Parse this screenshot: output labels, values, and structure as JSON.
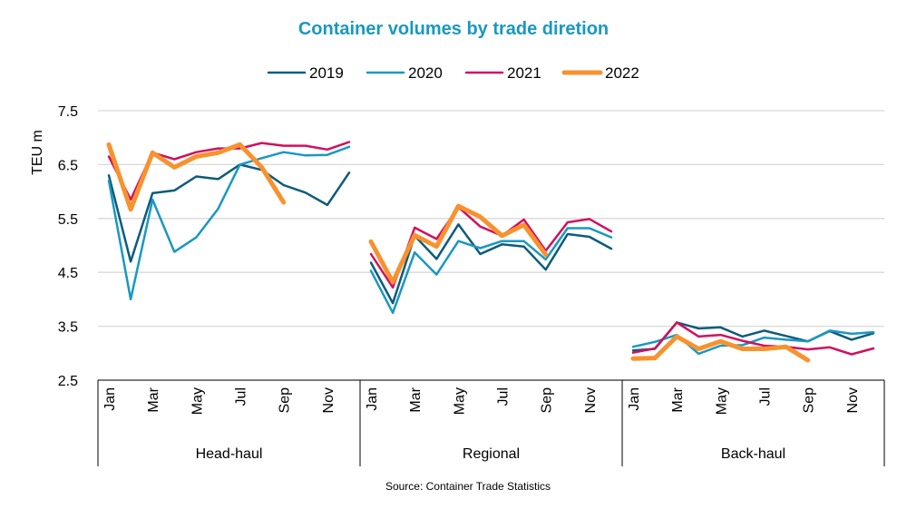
{
  "chart_data": {
    "type": "line",
    "title": "Container volumes by trade diretion",
    "ylabel": "TEU m",
    "xlabel": "",
    "ylim": [
      2.5,
      7.5
    ],
    "yticks": [
      "2.5",
      "3.5",
      "4.5",
      "5.5",
      "6.5",
      "7.5"
    ],
    "grid": true,
    "legend_position": "top-center",
    "source": "Source: Container Trade Statistics",
    "groups": [
      "Head-haul",
      "Regional",
      "Back-haul"
    ],
    "month_labels": [
      "Jan",
      "",
      "Mar",
      "",
      "May",
      "",
      "Jul",
      "",
      "Sep",
      "",
      "Nov",
      ""
    ],
    "series": [
      {
        "name": "2019",
        "color": "#0d5b7c",
        "width": 2.5,
        "values": {
          "Head-haul": [
            6.3,
            4.7,
            5.97,
            6.02,
            6.28,
            6.23,
            6.5,
            6.4,
            6.12,
            5.98,
            5.75,
            6.35
          ],
          "Regional": [
            4.68,
            3.93,
            5.18,
            4.75,
            5.39,
            4.84,
            5.02,
            4.98,
            4.55,
            5.21,
            5.16,
            4.94
          ],
          "Back-haul": [
            3.05,
            3.08,
            3.57,
            3.46,
            3.48,
            3.31,
            3.42,
            3.32,
            3.22,
            3.41,
            3.25,
            3.37
          ]
        }
      },
      {
        "name": "2020",
        "color": "#1a98c0",
        "width": 2.5,
        "values": {
          "Head-haul": [
            6.2,
            4.0,
            5.85,
            4.88,
            5.15,
            5.68,
            6.5,
            6.62,
            6.73,
            6.67,
            6.68,
            6.83
          ],
          "Regional": [
            4.53,
            3.75,
            4.87,
            4.46,
            5.08,
            4.95,
            5.08,
            5.08,
            4.74,
            5.32,
            5.32,
            5.15
          ],
          "Back-haul": [
            3.12,
            3.21,
            3.34,
            2.99,
            3.14,
            3.15,
            3.29,
            3.25,
            3.22,
            3.42,
            3.36,
            3.39
          ]
        }
      },
      {
        "name": "2021",
        "color": "#d1105d",
        "width": 2.5,
        "values": {
          "Head-haul": [
            6.65,
            5.85,
            6.72,
            6.6,
            6.73,
            6.8,
            6.8,
            6.9,
            6.85,
            6.85,
            6.78,
            6.92
          ],
          "Regional": [
            4.84,
            4.22,
            5.33,
            5.12,
            5.71,
            5.35,
            5.18,
            5.48,
            4.9,
            5.43,
            5.49,
            5.26
          ],
          "Back-haul": [
            3.01,
            3.09,
            3.57,
            3.31,
            3.34,
            3.23,
            3.14,
            3.12,
            3.07,
            3.11,
            2.98,
            3.09
          ]
        }
      },
      {
        "name": "2022",
        "color": "#f7922e",
        "width": 5,
        "values": {
          "Head-haul": [
            6.87,
            5.67,
            6.72,
            6.45,
            6.65,
            6.72,
            6.87,
            6.45,
            5.8
          ],
          "Regional": [
            5.07,
            4.32,
            5.19,
            4.98,
            5.73,
            5.53,
            5.18,
            5.38,
            4.83
          ],
          "Back-haul": [
            2.9,
            2.91,
            3.31,
            3.08,
            3.22,
            3.08,
            3.08,
            3.12,
            2.87
          ]
        }
      }
    ],
    "title_color": "#1a98c0"
  }
}
